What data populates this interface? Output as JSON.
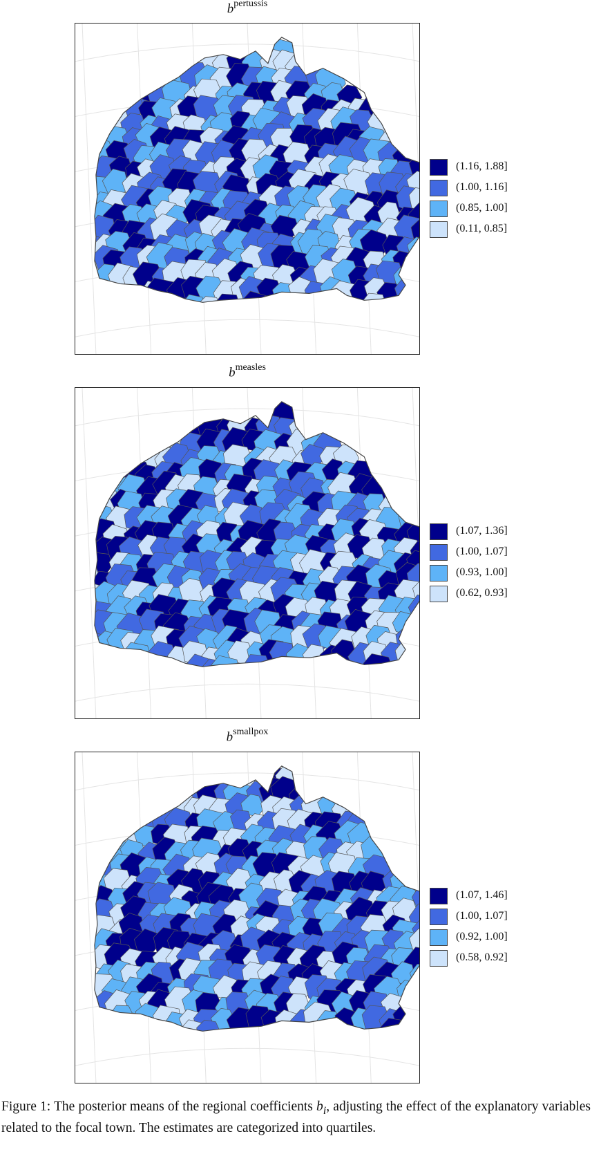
{
  "panels": [
    {
      "title_base": "b",
      "title_sup": "pertussis",
      "legend": [
        {
          "label": "(1.16, 1.88]",
          "color": "#00008b"
        },
        {
          "label": "(1.00, 1.16]",
          "color": "#4169e1"
        },
        {
          "label": "(0.85, 1.00]",
          "color": "#5eb3f7"
        },
        {
          "label": "(0.11, 0.85]",
          "color": "#cde3fb"
        }
      ]
    },
    {
      "title_base": "b",
      "title_sup": "measles",
      "legend": [
        {
          "label": "(1.07, 1.36]",
          "color": "#00008b"
        },
        {
          "label": "(1.00, 1.07]",
          "color": "#4169e1"
        },
        {
          "label": "(0.93, 1.00]",
          "color": "#5eb3f7"
        },
        {
          "label": "(0.62, 0.93]",
          "color": "#cde3fb"
        }
      ]
    },
    {
      "title_base": "b",
      "title_sup": "smallpox",
      "legend": [
        {
          "label": "(1.07, 1.46]",
          "color": "#00008b"
        },
        {
          "label": "(1.00, 1.07]",
          "color": "#4169e1"
        },
        {
          "label": "(0.92, 1.00]",
          "color": "#5eb3f7"
        },
        {
          "label": "(0.58, 0.92]",
          "color": "#cde3fb"
        }
      ]
    }
  ],
  "caption": {
    "prefix": "Figure 1: The posterior means of the regional coefficients ",
    "symbol": "b",
    "symbol_sub": "i",
    "suffix": ", adjusting the effect of the explanatory variables related to the focal town. The estimates are categorized into quartiles."
  }
}
